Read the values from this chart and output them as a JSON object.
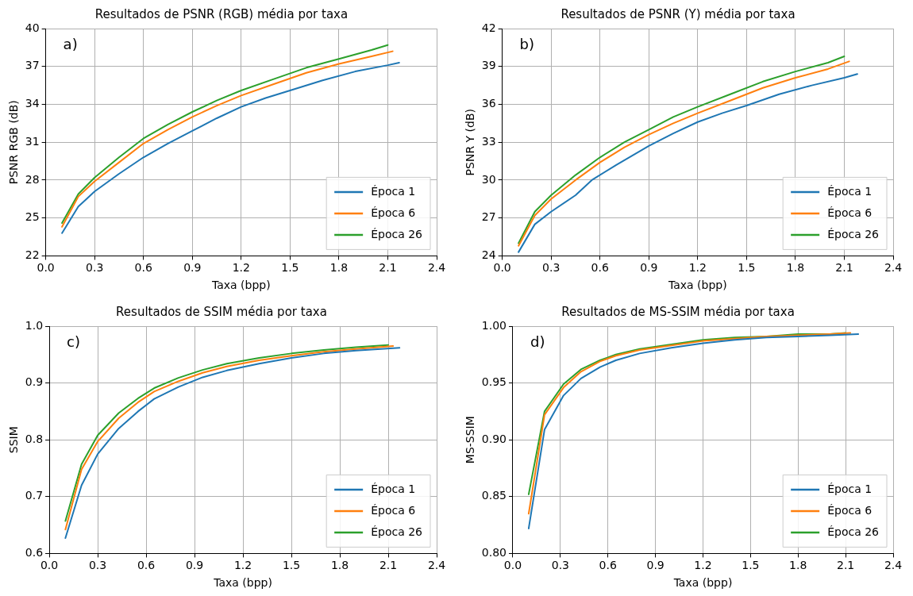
{
  "chart_data": [
    {
      "type": "line",
      "title": "Resultados de PSNR (RGB) média por taxa",
      "xlabel": "Taxa (bpp)",
      "ylabel": "PSNR RGB (dB)",
      "annotations": [
        "a)"
      ],
      "grid": true,
      "legend": "bottom right",
      "marker": "none",
      "line_style": "solid",
      "xlim": [
        0,
        2.4
      ],
      "xticks": [
        {
          "value": 0,
          "label": "0.0"
        },
        {
          "value": 0.3,
          "label": "0.3"
        },
        {
          "value": 0.6,
          "label": "0.6"
        },
        {
          "value": 0.9,
          "label": "0.9"
        },
        {
          "value": 1.2,
          "label": "1.2"
        },
        {
          "value": 1.5,
          "label": "1.5"
        },
        {
          "value": 1.8,
          "label": "1.8"
        },
        {
          "value": 2.1,
          "label": "2.1"
        },
        {
          "value": 2.4,
          "label": "2.4"
        }
      ],
      "ylim": [
        22,
        40
      ],
      "yticks": [
        22,
        25,
        28,
        31,
        34,
        37,
        40
      ],
      "series": [
        {
          "name": "Época 1",
          "color": "#1f77b4",
          "x": [
            0.1,
            0.2,
            0.3,
            0.45,
            0.6,
            0.75,
            0.9,
            1.05,
            1.2,
            1.35,
            1.5,
            1.7,
            1.9,
            2.1,
            2.17
          ],
          "values": [
            23.8,
            25.9,
            27.1,
            28.5,
            29.8,
            30.9,
            31.9,
            32.9,
            33.8,
            34.5,
            35.1,
            35.9,
            36.6,
            37.1,
            37.3
          ]
        },
        {
          "name": "Época 6",
          "color": "#ff7f0e",
          "x": [
            0.1,
            0.2,
            0.3,
            0.45,
            0.6,
            0.75,
            0.9,
            1.05,
            1.2,
            1.4,
            1.6,
            1.8,
            2.0,
            2.13
          ],
          "values": [
            24.3,
            26.7,
            27.9,
            29.4,
            30.9,
            32.0,
            33.0,
            33.9,
            34.7,
            35.6,
            36.5,
            37.2,
            37.8,
            38.2
          ]
        },
        {
          "name": "Época 26",
          "color": "#2ca02c",
          "x": [
            0.1,
            0.2,
            0.3,
            0.45,
            0.6,
            0.75,
            0.9,
            1.05,
            1.2,
            1.4,
            1.6,
            1.8,
            2.0,
            2.1
          ],
          "values": [
            24.6,
            26.9,
            28.2,
            29.8,
            31.3,
            32.4,
            33.4,
            34.3,
            35.1,
            36.0,
            36.9,
            37.6,
            38.3,
            38.7
          ]
        }
      ]
    },
    {
      "type": "line",
      "title": "Resultados de PSNR (Y) média por taxa",
      "xlabel": "Taxa (bpp)",
      "ylabel": "PSNR Y (dB)",
      "annotations": [
        "b)"
      ],
      "grid": true,
      "legend": "bottom right",
      "marker": "none",
      "line_style": "solid",
      "xlim": [
        0,
        2.4
      ],
      "xticks": [
        {
          "value": 0,
          "label": "0.0"
        },
        {
          "value": 0.3,
          "label": "0.3"
        },
        {
          "value": 0.6,
          "label": "0.6"
        },
        {
          "value": 0.9,
          "label": "0.9"
        },
        {
          "value": 1.2,
          "label": "1.2"
        },
        {
          "value": 1.5,
          "label": "1.5"
        },
        {
          "value": 1.8,
          "label": "1.8"
        },
        {
          "value": 2.1,
          "label": "2.1"
        },
        {
          "value": 2.4,
          "label": "2.4"
        }
      ],
      "ylim": [
        24,
        42
      ],
      "yticks": [
        24,
        27,
        30,
        33,
        36,
        39,
        42
      ],
      "series": [
        {
          "name": "Época 1",
          "color": "#1f77b4",
          "x": [
            0.1,
            0.2,
            0.3,
            0.45,
            0.55,
            0.7,
            0.9,
            1.05,
            1.2,
            1.35,
            1.5,
            1.7,
            1.9,
            2.1,
            2.18
          ],
          "values": [
            24.3,
            26.5,
            27.5,
            28.8,
            30.0,
            31.2,
            32.7,
            33.7,
            34.6,
            35.3,
            35.9,
            36.8,
            37.5,
            38.1,
            38.4
          ]
        },
        {
          "name": "Época 6",
          "color": "#ff7f0e",
          "x": [
            0.1,
            0.2,
            0.3,
            0.45,
            0.6,
            0.75,
            0.9,
            1.05,
            1.2,
            1.4,
            1.6,
            1.8,
            2.0,
            2.13
          ],
          "values": [
            24.8,
            27.2,
            28.5,
            30.0,
            31.4,
            32.6,
            33.6,
            34.5,
            35.3,
            36.3,
            37.3,
            38.1,
            38.8,
            39.4
          ]
        },
        {
          "name": "Época 26",
          "color": "#2ca02c",
          "x": [
            0.1,
            0.2,
            0.3,
            0.45,
            0.6,
            0.75,
            0.9,
            1.05,
            1.2,
            1.4,
            1.6,
            1.8,
            2.0,
            2.1
          ],
          "values": [
            25.0,
            27.5,
            28.8,
            30.4,
            31.8,
            33.0,
            34.0,
            35.0,
            35.8,
            36.8,
            37.8,
            38.6,
            39.3,
            39.8
          ]
        }
      ]
    },
    {
      "type": "line",
      "title": "Resultados de SSIM média por taxa",
      "xlabel": "Taxa (bpp)",
      "ylabel": "SSIM",
      "annotations": [
        "c)"
      ],
      "grid": true,
      "legend": "bottom right",
      "marker": "none",
      "line_style": "solid",
      "xlim": [
        0,
        2.4
      ],
      "xticks": [
        {
          "value": 0,
          "label": "0.0"
        },
        {
          "value": 0.3,
          "label": "0.3"
        },
        {
          "value": 0.6,
          "label": "0.6"
        },
        {
          "value": 0.9,
          "label": "0.9"
        },
        {
          "value": 1.2,
          "label": "1.2"
        },
        {
          "value": 1.5,
          "label": "1.5"
        },
        {
          "value": 1.8,
          "label": "1.8"
        },
        {
          "value": 2.1,
          "label": "2.1"
        },
        {
          "value": 2.4,
          "label": "2.4"
        }
      ],
      "ylim": [
        0.6,
        1.0
      ],
      "yticks": [
        0.6,
        0.7,
        0.8,
        0.9,
        {
          "value": 1.0,
          "label": "1.0"
        }
      ],
      "series": [
        {
          "name": "Época 1",
          "color": "#1f77b4",
          "x": [
            0.1,
            0.2,
            0.3,
            0.43,
            0.55,
            0.65,
            0.8,
            0.95,
            1.1,
            1.3,
            1.5,
            1.7,
            1.9,
            2.17
          ],
          "values": [
            0.627,
            0.72,
            0.775,
            0.82,
            0.85,
            0.872,
            0.893,
            0.91,
            0.922,
            0.934,
            0.944,
            0.952,
            0.957,
            0.962
          ]
        },
        {
          "name": "Época 6",
          "color": "#ff7f0e",
          "x": [
            0.1,
            0.2,
            0.3,
            0.43,
            0.55,
            0.65,
            0.8,
            0.95,
            1.1,
            1.3,
            1.5,
            1.7,
            1.9,
            2.13
          ],
          "values": [
            0.642,
            0.748,
            0.797,
            0.838,
            0.866,
            0.885,
            0.903,
            0.918,
            0.929,
            0.94,
            0.948,
            0.955,
            0.96,
            0.965
          ]
        },
        {
          "name": "Época 26",
          "color": "#2ca02c",
          "x": [
            0.1,
            0.2,
            0.3,
            0.43,
            0.55,
            0.65,
            0.8,
            0.95,
            1.1,
            1.3,
            1.5,
            1.7,
            1.9,
            2.1
          ],
          "values": [
            0.657,
            0.757,
            0.808,
            0.847,
            0.873,
            0.891,
            0.909,
            0.923,
            0.934,
            0.944,
            0.952,
            0.958,
            0.963,
            0.967
          ]
        }
      ]
    },
    {
      "type": "line",
      "title": "Resultados de MS-SSIM média por taxa",
      "xlabel": "Taxa (bpp)",
      "ylabel": "MS-SSIM",
      "annotations": [
        "d)"
      ],
      "grid": true,
      "legend": "bottom right",
      "marker": "none",
      "line_style": "solid",
      "xlim": [
        0,
        2.4
      ],
      "xticks": [
        {
          "value": 0,
          "label": "0.0"
        },
        {
          "value": 0.3,
          "label": "0.3"
        },
        {
          "value": 0.6,
          "label": "0.6"
        },
        {
          "value": 0.9,
          "label": "0.9"
        },
        {
          "value": 1.2,
          "label": "1.2"
        },
        {
          "value": 1.5,
          "label": "1.5"
        },
        {
          "value": 1.8,
          "label": "1.8"
        },
        {
          "value": 2.1,
          "label": "2.1"
        },
        {
          "value": 2.4,
          "label": "2.4"
        }
      ],
      "ylim": [
        0.8,
        1.0
      ],
      "yticks": [
        {
          "value": 0.8,
          "label": "0.80"
        },
        {
          "value": 0.85,
          "label": "0.85"
        },
        {
          "value": 0.9,
          "label": "0.90"
        },
        {
          "value": 0.95,
          "label": "0.95"
        },
        {
          "value": 1.0,
          "label": "1.00"
        }
      ],
      "series": [
        {
          "name": "Época 1",
          "color": "#1f77b4",
          "x": [
            0.1,
            0.2,
            0.32,
            0.43,
            0.55,
            0.65,
            0.8,
            1.0,
            1.2,
            1.4,
            1.6,
            1.8,
            2.0,
            2.18
          ],
          "values": [
            0.822,
            0.909,
            0.939,
            0.954,
            0.964,
            0.97,
            0.976,
            0.981,
            0.985,
            0.988,
            0.99,
            0.991,
            0.992,
            0.993
          ]
        },
        {
          "name": "Época 6",
          "color": "#ff7f0e",
          "x": [
            0.1,
            0.2,
            0.32,
            0.43,
            0.55,
            0.65,
            0.8,
            1.0,
            1.2,
            1.4,
            1.6,
            1.8,
            2.0,
            2.13
          ],
          "values": [
            0.835,
            0.922,
            0.946,
            0.96,
            0.969,
            0.974,
            0.979,
            0.983,
            0.987,
            0.989,
            0.991,
            0.992,
            0.993,
            0.994
          ]
        },
        {
          "name": "Época 26",
          "color": "#2ca02c",
          "x": [
            0.1,
            0.2,
            0.32,
            0.43,
            0.55,
            0.65,
            0.8,
            1.0,
            1.2,
            1.4,
            1.6,
            1.8,
            2.0,
            2.1
          ],
          "values": [
            0.852,
            0.925,
            0.949,
            0.962,
            0.97,
            0.975,
            0.98,
            0.984,
            0.988,
            0.99,
            0.991,
            0.993,
            0.993,
            0.994
          ]
        }
      ]
    }
  ]
}
